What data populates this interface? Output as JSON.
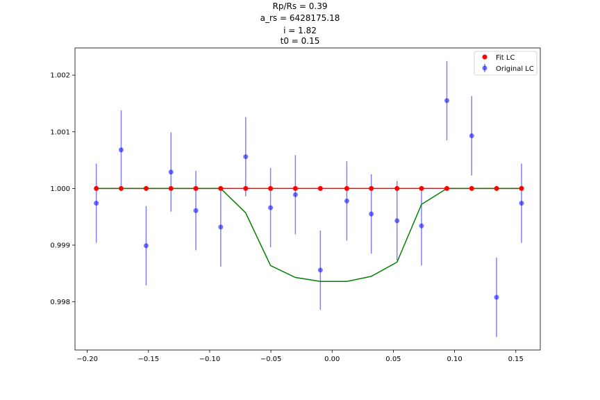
{
  "chart_data": {
    "type": "scatter",
    "title_lines": [
      "Rp/Rs = 0.39",
      "a_rs = 6428175.18",
      "i = 1.82",
      "t0 = 0.15"
    ],
    "xlabel": "",
    "ylabel": "",
    "xlim": [
      -0.21,
      0.17
    ],
    "ylim": [
      0.99715,
      1.00248
    ],
    "xticks": [
      -0.2,
      -0.15,
      -0.1,
      -0.05,
      0.0,
      0.05,
      0.1,
      0.15
    ],
    "xtick_labels": [
      "−0.20",
      "−0.15",
      "−0.10",
      "−0.05",
      "0.00",
      "0.05",
      "0.10",
      "0.15"
    ],
    "yticks": [
      0.998,
      0.999,
      1.0,
      1.001,
      1.002
    ],
    "ytick_labels": [
      "0.998",
      "0.999",
      "1.000",
      "1.001",
      "1.002"
    ],
    "grid": false,
    "legend": {
      "position": "top-right",
      "entries": [
        {
          "label": "Fit LC",
          "color": "#ff0000",
          "marker": "circle"
        },
        {
          "label": "Original LC",
          "color": "#0000ff",
          "marker": "errorbar-circle"
        }
      ]
    },
    "x": [
      -0.1926,
      -0.1723,
      -0.1519,
      -0.1316,
      -0.1113,
      -0.091,
      -0.0706,
      -0.0503,
      -0.03,
      -0.0096,
      0.012,
      0.032,
      0.053,
      0.073,
      0.0937,
      0.114,
      0.1343,
      0.1547
    ],
    "series": [
      {
        "name": "Original LC",
        "kind": "errorbar",
        "color": "#0000ff",
        "y": [
          0.99974,
          1.00068,
          0.99899,
          1.00029,
          0.99961,
          0.99932,
          1.00056,
          0.99966,
          0.99989,
          0.99856,
          0.99978,
          0.99955,
          0.99943,
          0.99934,
          1.00155,
          1.00093,
          0.99808,
          0.99974
        ],
        "yerr": 0.0007
      },
      {
        "name": "Fit LC",
        "kind": "line+points",
        "color": "#ff0000",
        "y": [
          1.0,
          1.0,
          1.0,
          1.0,
          1.0,
          1.0,
          1.0,
          1.0,
          1.0,
          1.0,
          1.0,
          1.0,
          1.0,
          1.0,
          1.0,
          1.0,
          1.0,
          1.0
        ]
      },
      {
        "kind": "line",
        "color": "#008000",
        "y": [
          1.0,
          1.0,
          1.0,
          1.0,
          1.0,
          1.0,
          0.99957,
          0.99864,
          0.99843,
          0.99836,
          0.99836,
          0.99845,
          0.9987,
          0.99972,
          1.0,
          1.0,
          1.0,
          1.0
        ]
      }
    ]
  }
}
